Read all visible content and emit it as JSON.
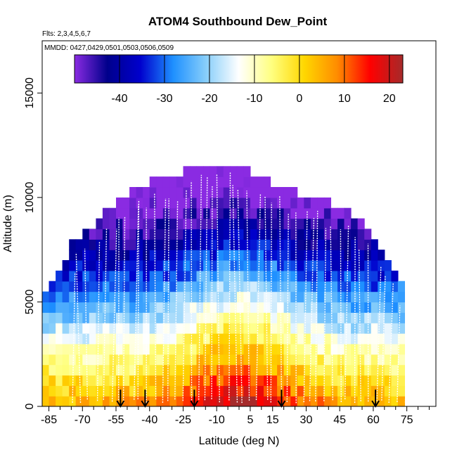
{
  "chart_data": {
    "type": "heatmap",
    "title": "ATOM4 Southbound Dew_Point",
    "flights_note": "Flts: 2,3,4,5,6,7",
    "dates_note": "MMDD: 0427,0429,0501,0503,0506,0509",
    "xlabel": "Latitude (deg N)",
    "ylabel": "Altitude (m)",
    "xlim": [
      -88,
      88
    ],
    "ylim": [
      0,
      17500
    ],
    "x_ticks": [
      -85,
      -70,
      -55,
      -40,
      -25,
      -10,
      5,
      15,
      30,
      45,
      60,
      75
    ],
    "x_minor_ticks": [
      -80,
      -75,
      -65,
      -60,
      -50,
      -45,
      -35,
      -30,
      -20,
      -15,
      -5,
      0,
      10,
      20,
      25,
      35,
      40,
      50,
      55,
      65,
      70,
      80,
      85
    ],
    "y_ticks": [
      0,
      5000,
      10000,
      15000
    ],
    "colorbar": {
      "range": [
        -50,
        23
      ],
      "ticks": [
        -40,
        -30,
        -20,
        -10,
        0,
        10,
        20
      ],
      "colors": [
        "#8a2be2",
        "#00008b",
        "#0000cd",
        "#1e90ff",
        "#87cefa",
        "#ffffff",
        "#ffff80",
        "#ffd700",
        "#ff8c00",
        "#ff0000",
        "#a52a2a"
      ]
    },
    "grid_cell": {
      "lat_step": 3,
      "alt_step": 500
    },
    "dome": {
      "type": "top_altitude_by_latitude",
      "lat": [
        -85,
        -80,
        -75,
        -70,
        -65,
        -60,
        -55,
        -50,
        -45,
        -40,
        -35,
        -30,
        -25,
        -20,
        -15,
        -10,
        -5,
        0,
        5,
        10,
        15,
        20,
        25,
        30,
        35,
        40,
        45,
        50,
        55,
        60,
        65,
        70,
        75
      ],
      "alt": [
        5500,
        6500,
        7500,
        8000,
        8500,
        9000,
        9500,
        10000,
        10500,
        10500,
        11000,
        11000,
        11000,
        11500,
        11500,
        11500,
        11500,
        11500,
        11000,
        11000,
        10500,
        10500,
        10000,
        10000,
        10000,
        9500,
        9500,
        9000,
        8500,
        8000,
        7000,
        6000,
        5500
      ]
    },
    "dewpoint_profile": {
      "altitude_m": [
        0,
        1000,
        2000,
        3000,
        4000,
        5000,
        6000,
        7000,
        8000,
        9000,
        10000,
        11000,
        12000
      ],
      "tropics": [
        22,
        15,
        8,
        1,
        -6,
        -13,
        -21,
        -29,
        -37,
        -44,
        -50,
        -53,
        -55
      ],
      "high_latitude": [
        6,
        0,
        -6,
        -12,
        -19,
        -26,
        -32,
        -38,
        -44,
        -49,
        -53,
        -55,
        -56
      ]
    },
    "surface_markers_lat": [
      -53,
      -42,
      -20,
      19,
      61
    ],
    "marker_top_alt": 800
  }
}
